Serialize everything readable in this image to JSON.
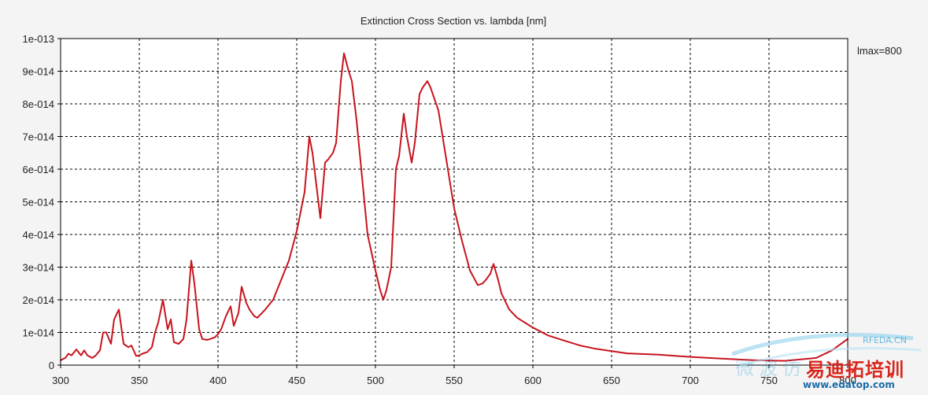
{
  "chart_data": {
    "type": "line",
    "title": "Extinction Cross Section vs. lambda [nm]",
    "xlabel": "",
    "ylabel": "",
    "xlim": [
      300,
      800
    ],
    "ylim": [
      0,
      1e-13
    ],
    "grid": true,
    "legend_position": "top-right",
    "x_ticks": [
      300,
      350,
      400,
      450,
      500,
      550,
      600,
      650,
      700,
      750,
      800
    ],
    "x_tick_labels": [
      "300",
      "350",
      "400",
      "450",
      "500",
      "550",
      "600",
      "650",
      "700",
      "750",
      "800"
    ],
    "y_ticks": [
      0,
      1e-14,
      2e-14,
      3e-14,
      4e-14,
      5e-14,
      6e-14,
      7e-14,
      8e-14,
      9e-14,
      1e-13
    ],
    "y_tick_labels": [
      "0",
      "1e-014",
      "2e-014",
      "3e-014",
      "4e-014",
      "5e-014",
      "6e-014",
      "7e-014",
      "8e-014",
      "9e-014",
      "1e-013"
    ],
    "series": [
      {
        "name": "lmax=800",
        "color": "#c8141e",
        "x": [
          300,
          303,
          305,
          307,
          310,
          313,
          315,
          317,
          320,
          322,
          325,
          327,
          329,
          332,
          334,
          337,
          340,
          343,
          345,
          348,
          350,
          352,
          355,
          358,
          360,
          362,
          365,
          368,
          370,
          372,
          375,
          378,
          380,
          383,
          385,
          388,
          390,
          393,
          395,
          398,
          400,
          402,
          405,
          408,
          410,
          413,
          415,
          418,
          420,
          423,
          425,
          430,
          435,
          440,
          445,
          450,
          455,
          458,
          460,
          463,
          465,
          468,
          470,
          473,
          475,
          478,
          480,
          483,
          485,
          488,
          490,
          495,
          500,
          503,
          505,
          507,
          510,
          513,
          515,
          518,
          520,
          523,
          525,
          528,
          530,
          533,
          535,
          540,
          545,
          550,
          555,
          560,
          565,
          568,
          570,
          573,
          575,
          578,
          580,
          585,
          590,
          595,
          600,
          610,
          620,
          630,
          640,
          650,
          660,
          680,
          700,
          720,
          740,
          760,
          780,
          790,
          800
        ],
        "y": [
          1.5e-15,
          2.2e-15,
          3.5e-15,
          3e-15,
          4.8e-15,
          3e-15,
          4.5e-15,
          3e-15,
          2.2e-15,
          2.8e-15,
          4.5e-15,
          1e-14,
          1e-14,
          6.5e-15,
          1.4e-14,
          1.7e-14,
          6.5e-15,
          5.5e-15,
          6e-15,
          2.8e-15,
          3e-15,
          3.5e-15,
          4e-15,
          5.5e-15,
          1e-14,
          1.3e-14,
          2e-14,
          1.1e-14,
          1.4e-14,
          7e-15,
          6.5e-15,
          8e-15,
          1.4e-14,
          3.2e-14,
          2.5e-14,
          1.1e-14,
          8e-15,
          7.7e-15,
          8e-15,
          8.5e-15,
          9.5e-15,
          1.1e-14,
          1.5e-14,
          1.8e-14,
          1.2e-14,
          1.6e-14,
          2.4e-14,
          1.9e-14,
          1.7e-14,
          1.5e-14,
          1.45e-14,
          1.7e-14,
          2e-14,
          2.6e-14,
          3.2e-14,
          4.1e-14,
          5.3e-14,
          7e-14,
          6.5e-14,
          5.3e-14,
          4.5e-14,
          6.2e-14,
          6.3e-14,
          6.5e-14,
          6.8e-14,
          8.7e-14,
          9.55e-14,
          9e-14,
          8.7e-14,
          7.5e-14,
          6.5e-14,
          4e-14,
          2.9e-14,
          2.3e-14,
          2e-14,
          2.3e-14,
          3e-14,
          6e-14,
          6.4e-14,
          7.7e-14,
          7e-14,
          6.2e-14,
          6.8e-14,
          8.3e-14,
          8.5e-14,
          8.7e-14,
          8.5e-14,
          7.8e-14,
          6.3e-14,
          4.8e-14,
          3.8e-14,
          2.9e-14,
          2.45e-14,
          2.5e-14,
          2.6e-14,
          2.8e-14,
          3.1e-14,
          2.6e-14,
          2.2e-14,
          1.7e-14,
          1.45e-14,
          1.3e-14,
          1.15e-14,
          9e-15,
          7.5e-15,
          6e-15,
          5e-15,
          4.3e-15,
          3.6e-15,
          3.2e-15,
          2.5e-15,
          2e-15,
          1.5e-15,
          1.3e-15,
          2.2e-15,
          4.5e-15,
          8e-15
        ]
      }
    ]
  },
  "watermark": {
    "text_cn": "易迪拓培训",
    "url": "www.edatop.com",
    "rfeda": "RFEDA.CN",
    "cn_left": "微波仿",
    "colors": {
      "badge": "#d8261c",
      "cyan": "#37a6d6"
    }
  }
}
